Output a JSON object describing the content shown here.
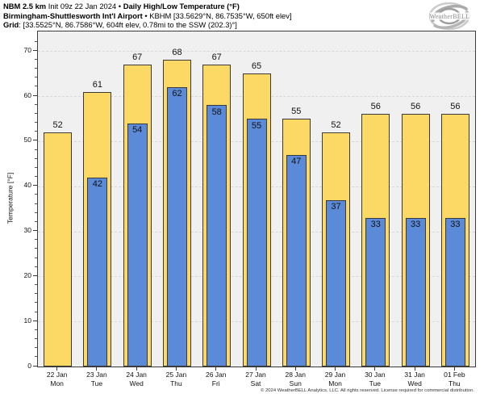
{
  "header": {
    "line1_segments": [
      {
        "text": "NBM 2.5 km ",
        "bold": true
      },
      {
        "text": "Init 09z 22 Jan 2024 ",
        "bold": false
      },
      {
        "text": "• ",
        "bold": false
      },
      {
        "text": "Daily High/Low Temperature (°F)",
        "bold": true
      }
    ],
    "line2_segments": [
      {
        "text": "Birmingham-Shuttlesworth Int'l Airport ",
        "bold": true
      },
      {
        "text": "• KBHM [33.5629°N, 86.7535°W, 650ft elev]",
        "bold": false
      }
    ],
    "line3_segments": [
      {
        "text": "Grid",
        "bold": true
      },
      {
        "text": ": [33.5525°N, 86.7586°W, 604ft elev, 0.78mi to the SSW (202.3)°]",
        "bold": false
      }
    ]
  },
  "logo": {
    "text": "WeatherBELL",
    "subtext": "Analytics LLC"
  },
  "chart_data": {
    "type": "bar",
    "title": "NBM 2.5 km Init 09z 22 Jan 2024 • Daily High/Low Temperature (°F)",
    "subtitle": "Birmingham-Shuttlesworth Int'l Airport • KBHM",
    "ylabel": "Temperature [°F]",
    "xlabel": "",
    "ylim": [
      0,
      74
    ],
    "yticks": [
      0,
      10,
      20,
      30,
      40,
      50,
      60,
      70
    ],
    "grid": "horizontal-dashed",
    "legend_position": "none",
    "categories": [
      {
        "date": "22 Jan",
        "weekday": "Mon"
      },
      {
        "date": "23 Jan",
        "weekday": "Tue"
      },
      {
        "date": "24 Jan",
        "weekday": "Wed"
      },
      {
        "date": "25 Jan",
        "weekday": "Thu"
      },
      {
        "date": "26 Jan",
        "weekday": "Fri"
      },
      {
        "date": "27 Jan",
        "weekday": "Sat"
      },
      {
        "date": "28 Jan",
        "weekday": "Sun"
      },
      {
        "date": "29 Jan",
        "weekday": "Mon"
      },
      {
        "date": "30 Jan",
        "weekday": "Tue"
      },
      {
        "date": "31 Jan",
        "weekday": "Wed"
      },
      {
        "date": "01 Feb",
        "weekday": "Thu"
      }
    ],
    "series": [
      {
        "name": "Daily High",
        "color": "#fbd964",
        "values": [
          52,
          61,
          67,
          68,
          67,
          65,
          55,
          52,
          56,
          56,
          56
        ]
      },
      {
        "name": "Daily Low",
        "color": "#5b8bd8",
        "values": [
          null,
          42,
          54,
          62,
          58,
          55,
          47,
          37,
          33,
          33,
          33
        ]
      }
    ]
  },
  "colors": {
    "plot_background": "#f0f0f0",
    "frame": "#3c3c3c",
    "gridline": "#d8d8d8",
    "bar_border": "#3a3a3a",
    "high_bar": "#fbd964",
    "low_bar": "#5b8bd8"
  },
  "footer": "© 2024 WeatherBELL Analytics, LLC. All rights reserved. License required for commercial distribution."
}
